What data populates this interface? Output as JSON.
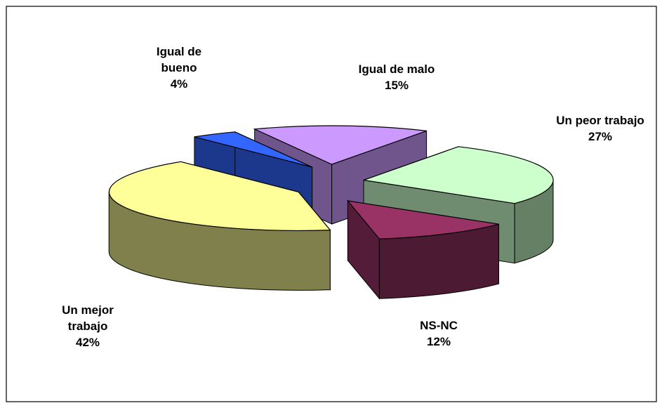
{
  "chart_data": {
    "type": "pie",
    "categories": [
      "Un peor trabajo",
      "NS-NC",
      "Un mejor trabajo",
      "Igual de bueno",
      "Igual de malo"
    ],
    "values": [
      27,
      12,
      42,
      4,
      15
    ],
    "value_labels": [
      "27%",
      "12%",
      "42%",
      "4%",
      "15%"
    ],
    "colors": [
      "#ccffcc",
      "#993366",
      "#ffff99",
      "#3366ff",
      "#cc99ff"
    ],
    "three_d": true,
    "exploded": true
  }
}
